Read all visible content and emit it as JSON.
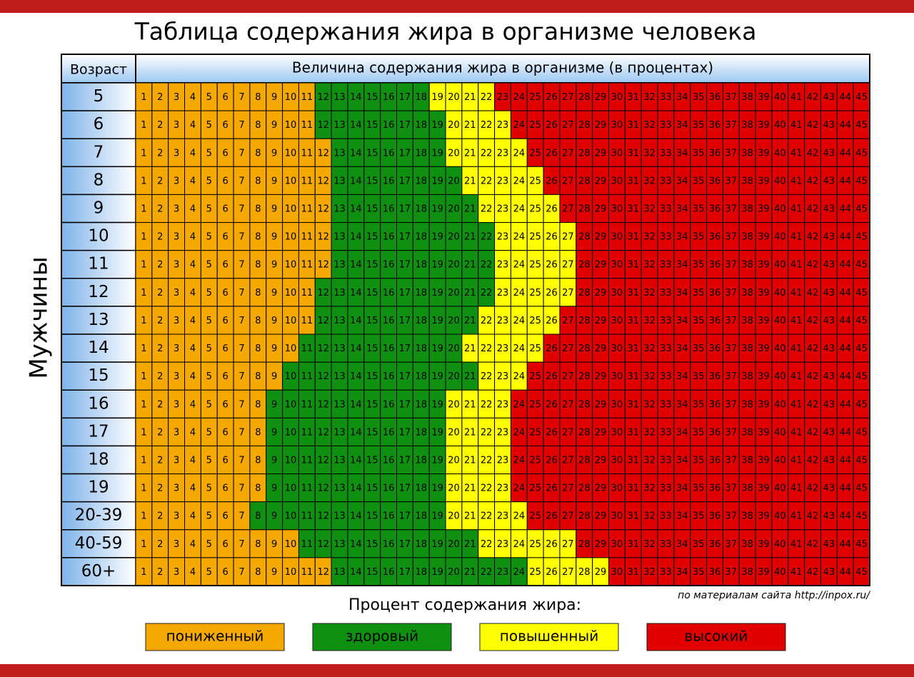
{
  "header": {
    "title": "Таблица содержания жира в организме человека"
  },
  "table": {
    "age_header": "Возраст",
    "value_header": "Величина содержания жира в организме (в процентах)",
    "side_label": "Мужчины",
    "percents": [
      1,
      2,
      3,
      4,
      5,
      6,
      7,
      8,
      9,
      10,
      11,
      12,
      13,
      14,
      15,
      16,
      17,
      18,
      19,
      20,
      21,
      22,
      23,
      24,
      25,
      26,
      27,
      28,
      29,
      30,
      31,
      32,
      33,
      34,
      35,
      36,
      37,
      38,
      39,
      40,
      41,
      42,
      43,
      44,
      45
    ],
    "rows": [
      {
        "age": "5",
        "starts": [
          12,
          19,
          23
        ]
      },
      {
        "age": "6",
        "starts": [
          12,
          20,
          24
        ]
      },
      {
        "age": "7",
        "starts": [
          13,
          20,
          25
        ]
      },
      {
        "age": "8",
        "starts": [
          13,
          21,
          26
        ]
      },
      {
        "age": "9",
        "starts": [
          13,
          22,
          27
        ]
      },
      {
        "age": "10",
        "starts": [
          13,
          23,
          28
        ]
      },
      {
        "age": "11",
        "starts": [
          13,
          23,
          28
        ]
      },
      {
        "age": "12",
        "starts": [
          12,
          23,
          28
        ]
      },
      {
        "age": "13",
        "starts": [
          12,
          22,
          27
        ]
      },
      {
        "age": "14",
        "starts": [
          11,
          21,
          26
        ]
      },
      {
        "age": "15",
        "starts": [
          10,
          22,
          25
        ]
      },
      {
        "age": "16",
        "starts": [
          9,
          20,
          24
        ]
      },
      {
        "age": "17",
        "starts": [
          9,
          20,
          24
        ]
      },
      {
        "age": "18",
        "starts": [
          9,
          20,
          24
        ]
      },
      {
        "age": "19",
        "starts": [
          9,
          20,
          24
        ]
      },
      {
        "age": "20-39",
        "starts": [
          8,
          20,
          25
        ]
      },
      {
        "age": "40-59",
        "starts": [
          11,
          22,
          28
        ]
      },
      {
        "age": "60+",
        "starts": [
          13,
          25,
          30
        ]
      }
    ]
  },
  "source": "по материалам сайта http://inpox.ru/",
  "legend": {
    "title": "Процент содержания жира:",
    "items": [
      {
        "label": "пониженный",
        "color": "#f5a800"
      },
      {
        "label": "здоровый",
        "color": "#109010"
      },
      {
        "label": "повышенный",
        "color": "#ffff00"
      },
      {
        "label": "высокий",
        "color": "#e00000"
      }
    ]
  }
}
